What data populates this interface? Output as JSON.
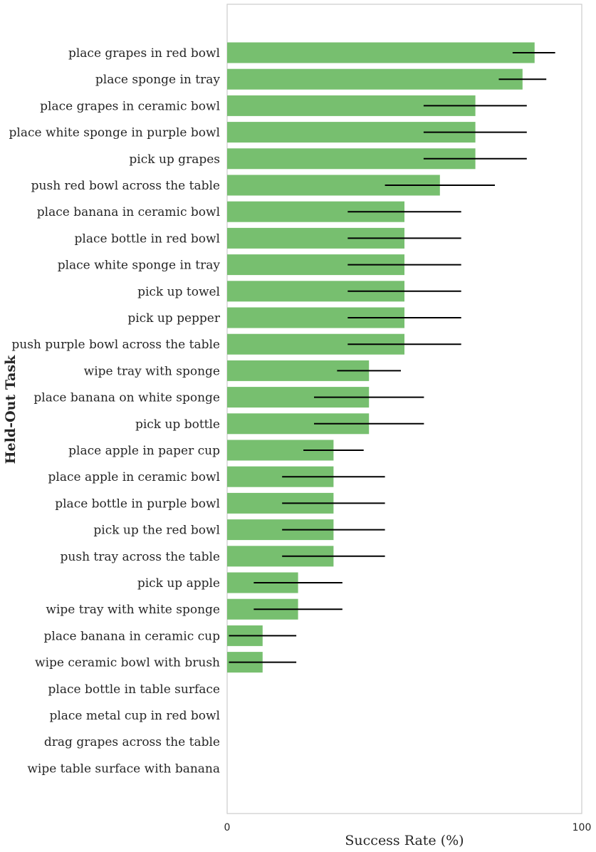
{
  "chart_data": {
    "type": "bar",
    "orientation": "horizontal",
    "xlabel": "Success Rate (%)",
    "ylabel": "Held-Out Task",
    "xlim": [
      0,
      100
    ],
    "x_ticks": [
      "0",
      "100"
    ],
    "grid": false,
    "colors": {
      "bar": "#77bf6f",
      "errorbar": "#000000",
      "frame": "#cccccc"
    },
    "categories": [
      "place grapes in red bowl",
      "place sponge in tray",
      "place grapes in ceramic bowl",
      "place white sponge in purple bowl",
      "pick up grapes",
      "push red bowl across the table",
      "place banana in ceramic bowl",
      "place bottle in red bowl",
      "place white sponge in tray",
      "pick up towel",
      "pick up pepper",
      "push purple bowl across the table",
      "wipe tray with sponge",
      "place banana on white sponge",
      "pick up bottle",
      "place apple in paper cup",
      "place apple in ceramic bowl",
      "place bottle in purple bowl",
      "pick up the red bowl",
      "push tray across the table",
      "pick up apple",
      "wipe tray with white sponge",
      "place banana in ceramic cup",
      "wipe ceramic bowl with brush",
      "place bottle in table surface",
      "place metal cup in red bowl",
      "drag grapes across the table",
      "wipe table surface with banana"
    ],
    "values": [
      86.7,
      83.3,
      70,
      70,
      70,
      60,
      50,
      50,
      50,
      50,
      50,
      50,
      40,
      40,
      40,
      30,
      30,
      30,
      30,
      30,
      20,
      20,
      10,
      10,
      0,
      0,
      0,
      0
    ],
    "error_low": [
      80.5,
      76.6,
      55.4,
      55.4,
      55.4,
      44.5,
      34,
      34,
      34,
      34,
      34,
      34,
      31,
      24.5,
      24.5,
      21.5,
      15.5,
      15.5,
      15.5,
      15.5,
      7.5,
      7.5,
      0.5,
      0.5,
      null,
      null,
      null,
      null
    ],
    "error_high": [
      92.5,
      90,
      84.5,
      84.5,
      84.5,
      75.5,
      66,
      66,
      66,
      66,
      66,
      66,
      49,
      55.5,
      55.5,
      38.5,
      44.5,
      44.5,
      44.5,
      44.5,
      32.5,
      32.5,
      19.5,
      19.5,
      null,
      null,
      null,
      null
    ]
  }
}
